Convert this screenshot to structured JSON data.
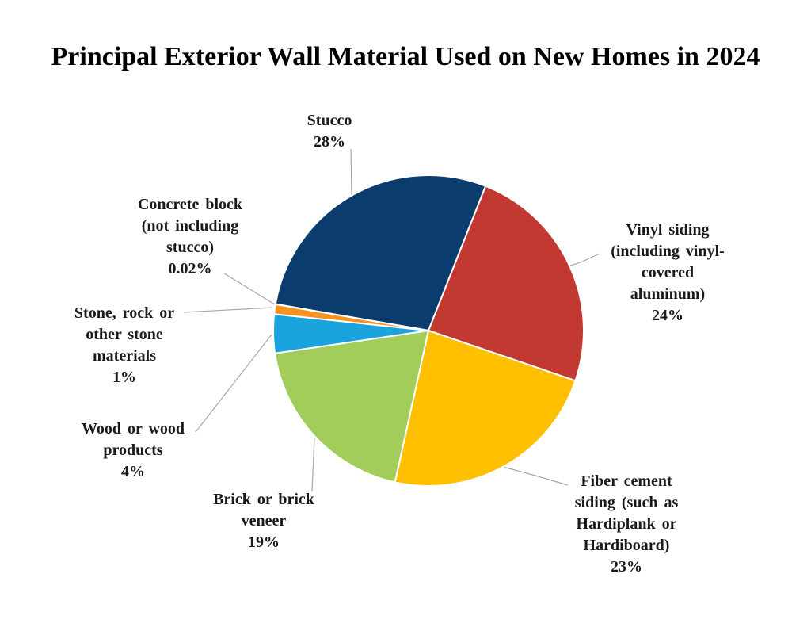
{
  "chart_data": {
    "type": "pie",
    "title": "Principal Exterior Wall Material Used on New Homes in 2024",
    "legend_position": "none",
    "labels_style": "outside callout labels with leader lines",
    "start_angle_deg": 279.8,
    "slice_border_color": "#ffffff",
    "leader_line_color": "#a8a8a8",
    "slices": [
      {
        "id": "stucco",
        "label": "Stucco",
        "value": 28,
        "pct_label": "28%",
        "color": "#0a3c6e",
        "label_lines": [
          "Stucco",
          "28%"
        ]
      },
      {
        "id": "vinyl-siding",
        "label": "Vinyl siding (including vinyl-covered aluminum)",
        "value": 24,
        "pct_label": "24%",
        "color": "#c23931",
        "label_lines": [
          "Vinyl siding",
          "(including vinyl-",
          "covered",
          "aluminum)",
          "24%"
        ]
      },
      {
        "id": "fiber-cement",
        "label": "Fiber cement siding (such as Hardiplank or Hardiboard)",
        "value": 23,
        "pct_label": "23%",
        "color": "#ffc001",
        "label_lines": [
          "Fiber cement",
          "siding (such as",
          "Hardiplank or",
          "Hardiboard)",
          "23%"
        ]
      },
      {
        "id": "brick",
        "label": "Brick or brick veneer",
        "value": 19,
        "pct_label": "19%",
        "color": "#a2cd5b",
        "label_lines": [
          "Brick or brick",
          "veneer",
          "19%"
        ]
      },
      {
        "id": "wood",
        "label": "Wood or wood products",
        "value": 4,
        "pct_label": "4%",
        "color": "#1ba3dd",
        "label_lines": [
          "Wood or wood",
          "products",
          "4%"
        ]
      },
      {
        "id": "stone",
        "label": "Stone, rock or other stone materials",
        "value": 1,
        "pct_label": "1%",
        "color": "#f6921e",
        "label_lines": [
          "Stone, rock or",
          "other stone",
          "materials",
          "1%"
        ]
      },
      {
        "id": "concrete-block",
        "label": "Concrete block (not including stucco)",
        "value": 0.02,
        "pct_label": "0.02%",
        "color": "#7f7f7f",
        "label_lines": [
          "Concrete block",
          "(not including",
          "stucco)",
          "0.02%"
        ]
      }
    ]
  }
}
